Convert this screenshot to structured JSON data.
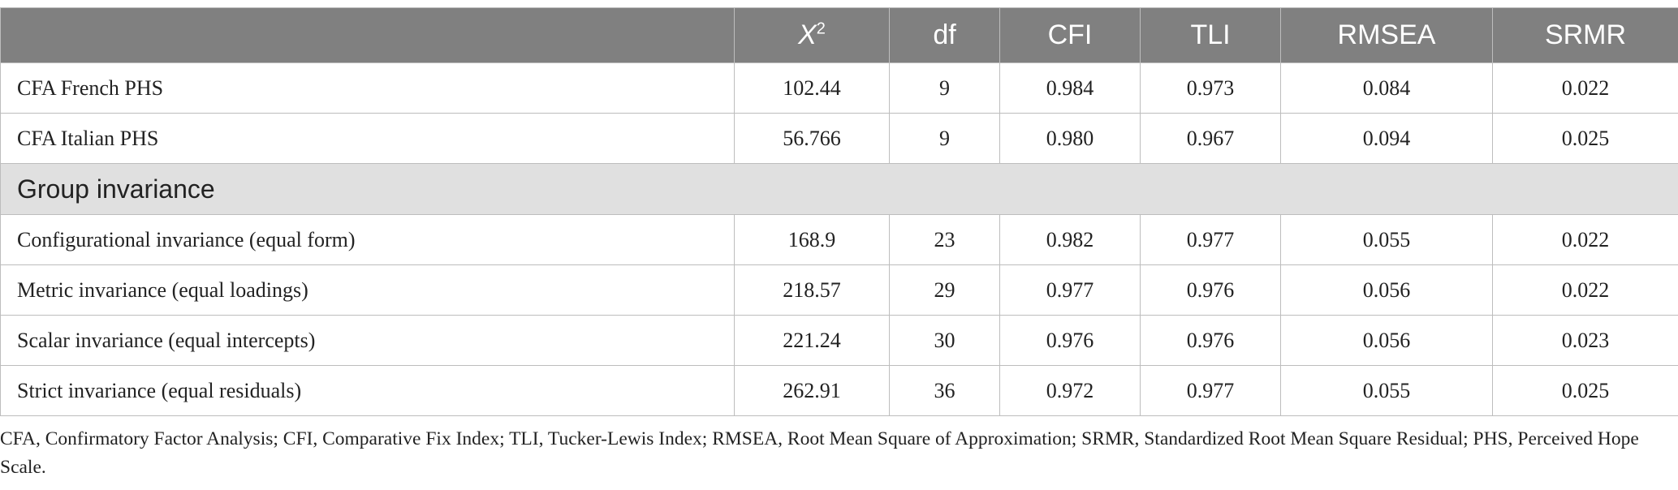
{
  "table": {
    "header": [
      "",
      {
        "base": "X",
        "sup": "2"
      },
      "df",
      "CFI",
      "TLI",
      "RMSEA",
      "SRMR"
    ],
    "rows": [
      [
        "CFA French PHS",
        "102.44",
        "9",
        "0.984",
        "0.973",
        "0.084",
        "0.022"
      ],
      [
        "CFA Italian PHS",
        "56.766",
        "9",
        "0.980",
        "0.967",
        "0.094",
        "0.025"
      ]
    ],
    "group_label": "Group invariance",
    "group_rows": [
      [
        "Configurational invariance (equal form)",
        "168.9",
        "23",
        "0.982",
        "0.977",
        "0.055",
        "0.022"
      ],
      [
        "Metric invariance (equal loadings)",
        "218.57",
        "29",
        "0.977",
        "0.976",
        "0.056",
        "0.022"
      ],
      [
        "Scalar invariance (equal intercepts)",
        "221.24",
        "30",
        "0.976",
        "0.976",
        "0.056",
        "0.023"
      ],
      [
        "Strict invariance (equal residuals)",
        "262.91",
        "36",
        "0.972",
        "0.977",
        "0.055",
        "0.025"
      ]
    ]
  },
  "footnote": "CFA, Confirmatory Factor Analysis; CFI, Comparative Fix Index; TLI, Tucker-Lewis Index; RMSEA, Root Mean Square of Approximation; SRMR, Standardized Root Mean Square Residual; PHS, Perceived Hope Scale."
}
